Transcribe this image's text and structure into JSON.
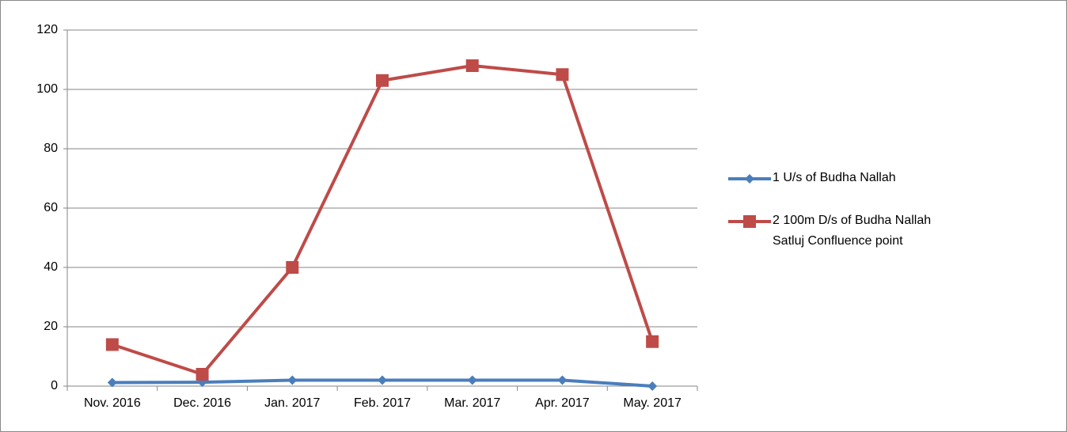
{
  "chart_data": {
    "type": "line",
    "categories": [
      "Nov. 2016",
      "Dec. 2016",
      "Jan. 2017",
      "Feb. 2017",
      "Mar. 2017",
      "Apr. 2017",
      "May. 2017"
    ],
    "series": [
      {
        "name": "1 U/s of Budha Nallah",
        "color": "#4a7ebb",
        "marker": "diamond",
        "values": [
          1.2,
          1.3,
          2,
          2,
          2,
          2,
          0
        ]
      },
      {
        "name": "2 100m D/s of Budha Nallah Satluj Confluence point",
        "color": "#be4b48",
        "marker": "square",
        "values": [
          14,
          4,
          40,
          103,
          108,
          105,
          15
        ]
      }
    ],
    "ylim": [
      0,
      120
    ],
    "yticks": [
      0,
      20,
      40,
      60,
      80,
      100,
      120
    ],
    "grid": true,
    "legend": "right"
  }
}
